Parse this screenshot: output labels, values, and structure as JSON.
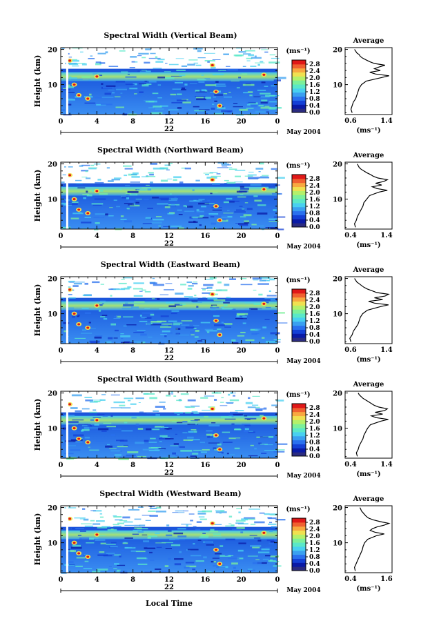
{
  "xlabel": "Local Time",
  "date_label": "May 2004",
  "day_label": "22",
  "colorbar": {
    "unit": "(ms⁻¹)",
    "ticks": [
      "0.0",
      "0.4",
      "0.8",
      "1.2",
      "1.6",
      "2.0",
      "2.4",
      "2.8"
    ],
    "colors": [
      "#2b2b80",
      "#0a1aa6",
      "#1440d6",
      "#2a70ee",
      "#3aa0f0",
      "#48d0f0",
      "#5ae8c8",
      "#7cf09a",
      "#b4f06a",
      "#f0e050",
      "#f8a840",
      "#f06030",
      "#e01818"
    ]
  },
  "avg_xlabel": "(ms⁻¹)",
  "chart_data": [
    {
      "type": "heatmap",
      "title": "Spectral Width (Vertical Beam)",
      "xlabel": "Local Time",
      "ylabel": "Height (km)",
      "x_ticks": [
        "0",
        "4",
        "8",
        "12",
        "16",
        "20",
        "0"
      ],
      "y_ticks": [
        "10",
        "20"
      ],
      "xlim": [
        0,
        24
      ],
      "ylim": [
        1.5,
        20.5
      ],
      "colorbar_range": [
        0.0,
        2.8
      ],
      "average_profile": {
        "title": "Average",
        "x_ticks": [
          "0.6",
          "1.4"
        ],
        "xlim": [
          0.6,
          1.4
        ],
        "y_ticks": [
          "10",
          "20"
        ],
        "ylim": [
          1.5,
          20.5
        ],
        "height_km": [
          2,
          3,
          4,
          5,
          6,
          7,
          8,
          9,
          10,
          11,
          12,
          12.5,
          13,
          13.5,
          14,
          14.5,
          15,
          15.5,
          16,
          16.5,
          17,
          17.5,
          18,
          18.5,
          19,
          19.5,
          20
        ],
        "width_ms": [
          0.72,
          0.7,
          0.72,
          0.74,
          0.78,
          0.8,
          0.82,
          0.84,
          0.88,
          0.96,
          1.22,
          1.35,
          1.12,
          1.02,
          1.2,
          1.1,
          1.18,
          1.28,
          1.1,
          1.02,
          0.96,
          0.9,
          0.86,
          0.84,
          0.8,
          0.78,
          0.76
        ]
      }
    },
    {
      "type": "heatmap",
      "title": "Spectral Width (Northward Beam)",
      "xlabel": "Local Time",
      "ylabel": "Height (km)",
      "x_ticks": [
        "0",
        "4",
        "8",
        "12",
        "16",
        "20",
        "0"
      ],
      "y_ticks": [
        "10",
        "20"
      ],
      "xlim": [
        0,
        24
      ],
      "ylim": [
        1.5,
        20.5
      ],
      "colorbar_range": [
        0.0,
        2.8
      ],
      "average_profile": {
        "title": "Average",
        "x_ticks": [
          "0.4",
          "1.4"
        ],
        "xlim": [
          0.4,
          1.4
        ],
        "y_ticks": [
          "10",
          "20"
        ],
        "ylim": [
          1.5,
          20.5
        ],
        "height_km": [
          2,
          3,
          4,
          5,
          6,
          7,
          8,
          9,
          10,
          11,
          12,
          12.5,
          13,
          13.5,
          14,
          14.5,
          15,
          15.5,
          16,
          16.5,
          17,
          17.5,
          18,
          18.5,
          19,
          19.5,
          20
        ],
        "width_ms": [
          0.62,
          0.6,
          0.64,
          0.66,
          0.7,
          0.74,
          0.78,
          0.8,
          0.86,
          0.92,
          1.12,
          1.3,
          1.08,
          0.98,
          1.18,
          1.05,
          1.22,
          1.3,
          1.1,
          1.0,
          0.94,
          0.86,
          0.8,
          0.74,
          0.7,
          0.68,
          0.66
        ]
      }
    },
    {
      "type": "heatmap",
      "title": "Spectral Width (Eastward Beam)",
      "xlabel": "Local Time",
      "ylabel": "Height (km)",
      "x_ticks": [
        "0",
        "4",
        "8",
        "12",
        "16",
        "20",
        "0"
      ],
      "y_ticks": [
        "10",
        "20"
      ],
      "xlim": [
        0,
        24
      ],
      "ylim": [
        1.5,
        20.5
      ],
      "colorbar_range": [
        0.0,
        2.8
      ],
      "average_profile": {
        "title": "Average",
        "x_ticks": [
          "0.6",
          "1.4"
        ],
        "xlim": [
          0.6,
          1.4
        ],
        "y_ticks": [
          "10",
          "20"
        ],
        "ylim": [
          1.5,
          20.5
        ],
        "height_km": [
          2,
          3,
          4,
          5,
          6,
          7,
          8,
          9,
          10,
          11,
          12,
          12.5,
          13,
          13.5,
          14,
          14.5,
          15,
          15.5,
          16,
          16.5,
          17,
          17.5,
          18,
          18.5,
          19,
          19.5,
          20
        ],
        "width_ms": [
          0.7,
          0.68,
          0.72,
          0.74,
          0.78,
          0.82,
          0.84,
          0.86,
          0.9,
          0.98,
          1.2,
          1.34,
          1.1,
          1.0,
          1.24,
          1.1,
          1.28,
          1.34,
          1.14,
          1.06,
          0.98,
          0.92,
          0.88,
          0.84,
          0.8,
          0.78,
          0.76
        ]
      }
    },
    {
      "type": "heatmap",
      "title": "Spectral Width (Southward Beam)",
      "xlabel": "Local Time",
      "ylabel": "Height (km)",
      "x_ticks": [
        "0",
        "4",
        "8",
        "12",
        "16",
        "20",
        "0"
      ],
      "y_ticks": [
        "10",
        "20"
      ],
      "xlim": [
        0,
        24
      ],
      "ylim": [
        1.5,
        20.5
      ],
      "colorbar_range": [
        0.0,
        2.8
      ],
      "average_profile": {
        "title": "Average",
        "x_ticks": [
          "0.4",
          "1.4"
        ],
        "xlim": [
          0.4,
          1.4
        ],
        "y_ticks": [
          "10",
          "20"
        ],
        "ylim": [
          1.5,
          20.5
        ],
        "height_km": [
          2,
          3,
          4,
          5,
          6,
          7,
          8,
          9,
          10,
          11,
          12,
          12.5,
          13,
          13.5,
          14,
          14.5,
          15,
          15.5,
          16,
          16.5,
          17,
          17.5,
          18,
          18.5,
          19,
          19.5,
          20
        ],
        "width_ms": [
          0.66,
          0.64,
          0.68,
          0.7,
          0.74,
          0.78,
          0.8,
          0.84,
          0.88,
          0.94,
          1.16,
          1.32,
          1.06,
          0.96,
          1.2,
          1.04,
          1.24,
          1.3,
          1.12,
          1.02,
          0.96,
          0.9,
          0.84,
          0.78,
          0.74,
          0.7,
          0.68
        ]
      }
    },
    {
      "type": "heatmap",
      "title": "Spectral Width (Westward Beam)",
      "xlabel": "Local Time",
      "ylabel": "Height (km)",
      "x_ticks": [
        "0",
        "4",
        "8",
        "12",
        "16",
        "20",
        "0"
      ],
      "y_ticks": [
        "10",
        "20"
      ],
      "xlim": [
        0,
        24
      ],
      "ylim": [
        1.5,
        20.5
      ],
      "colorbar_range": [
        0.0,
        2.8
      ],
      "average_profile": {
        "title": "Average",
        "x_ticks": [
          "0.4",
          "1.6"
        ],
        "xlim": [
          0.4,
          1.6
        ],
        "y_ticks": [
          "10",
          "20"
        ],
        "ylim": [
          1.5,
          20.5
        ],
        "height_km": [
          2,
          3,
          4,
          5,
          6,
          7,
          8,
          9,
          10,
          11,
          12,
          12.5,
          13,
          13.5,
          14,
          14.5,
          15,
          15.5,
          16,
          16.5,
          17,
          17.5,
          18,
          18.5,
          19,
          19.5,
          20
        ],
        "width_ms": [
          0.66,
          0.64,
          0.68,
          0.72,
          0.76,
          0.8,
          0.84,
          0.86,
          0.9,
          0.98,
          1.2,
          1.4,
          1.16,
          1.04,
          1.1,
          1.22,
          1.4,
          1.52,
          1.3,
          1.12,
          1.0,
          0.94,
          0.9,
          0.86,
          0.82,
          0.8,
          0.78
        ]
      }
    }
  ]
}
